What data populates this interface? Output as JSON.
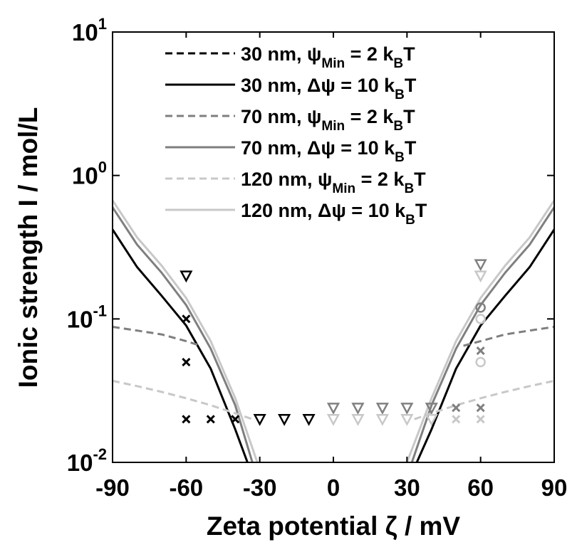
{
  "chart_data": {
    "type": "line",
    "xlabel": "Zeta potential ζ / mV",
    "ylabel": "Ionic strength I / mol/L",
    "xlim": [
      -90,
      90
    ],
    "ylim": [
      0.01,
      10
    ],
    "yscale": "log",
    "xticks": [
      -90,
      -60,
      -30,
      0,
      30,
      60,
      90
    ],
    "xtick_labels": [
      "-90",
      "-60",
      "-30",
      "0",
      "30",
      "60",
      "90"
    ],
    "yticks": [
      {
        "value": 0.01,
        "base": "10",
        "exp": "-2"
      },
      {
        "value": 0.1,
        "base": "10",
        "exp": "-1"
      },
      {
        "value": 1,
        "base": "10",
        "exp": "0"
      },
      {
        "value": 10,
        "base": "10",
        "exp": "1"
      }
    ],
    "grid": false,
    "legend_position": "top-right",
    "series": [
      {
        "name": "30 nm, ψMin = 2 kBT",
        "legend": {
          "main": "30 nm, ψ",
          "sub1": "Min",
          "mid": " = 2 k",
          "sub2": "B",
          "end": "T"
        },
        "color": "#000000",
        "dash": "dashed",
        "x": [
          -90,
          -80,
          -70,
          -60,
          -54
        ],
        "y": [
          null,
          null,
          null,
          null,
          null
        ]
      },
      {
        "name": "30 nm, Δψ = 10 kBT",
        "legend": {
          "main": "30 nm, Δψ = 10 k",
          "sub1": "",
          "mid": "",
          "sub2": "B",
          "end": "T"
        },
        "color": "#000000",
        "dash": "solid",
        "x": [
          -90,
          -80,
          -70,
          -60,
          -50,
          -40,
          -35
        ],
        "y": [
          0.42,
          0.23,
          0.145,
          0.09,
          0.045,
          0.017,
          0.01
        ]
      },
      {
        "name": "70 nm, ψMin = 2 kBT",
        "legend": {
          "main": "70 nm, ψ",
          "sub1": "Min",
          "mid": " = 2 k",
          "sub2": "B",
          "end": "T"
        },
        "color": "#7f7f7f",
        "dash": "dashed",
        "x": [
          -90,
          -80,
          -70,
          -60,
          -54
        ],
        "y": [
          0.088,
          0.083,
          0.078,
          0.07,
          0.065
        ]
      },
      {
        "name": "70 nm, Δψ = 10 kBT",
        "legend": {
          "main": "70 nm, Δψ = 10 k",
          "sub1": "",
          "mid": "",
          "sub2": "B",
          "end": "T"
        },
        "color": "#7f7f7f",
        "dash": "solid",
        "x": [
          -90,
          -80,
          -70,
          -60,
          -50,
          -40,
          -33
        ],
        "y": [
          0.6,
          0.33,
          0.21,
          0.125,
          0.062,
          0.025,
          0.01
        ]
      },
      {
        "name": "120 nm, ψMin = 2 kBT",
        "legend": {
          "main": "120 nm, ψ",
          "sub1": "Min",
          "mid": " = 2 k",
          "sub2": "B",
          "end": "T"
        },
        "color": "#c8c8c8",
        "dash": "dashed",
        "x": [
          -90,
          -80,
          -70,
          -60,
          -50,
          -40,
          -33
        ],
        "y": [
          0.037,
          0.034,
          0.031,
          0.028,
          0.025,
          0.022,
          0.02
        ]
      },
      {
        "name": "120 nm, Δψ = 10 kBT",
        "legend": {
          "main": "120 nm, Δψ = 10 k",
          "sub1": "",
          "mid": "",
          "sub2": "B",
          "end": "T"
        },
        "color": "#c8c8c8",
        "dash": "solid",
        "x": [
          -90,
          -80,
          -70,
          -60,
          -50,
          -40,
          -31
        ],
        "y": [
          0.67,
          0.37,
          0.235,
          0.14,
          0.07,
          0.028,
          0.01
        ]
      }
    ],
    "extra_curves": [
      {
        "color": "#000000",
        "dash": "solid",
        "x": [
          34,
          40,
          50,
          60,
          70,
          80,
          90
        ],
        "y": [
          0.01,
          0.017,
          0.045,
          0.09,
          0.145,
          0.23,
          0.42
        ]
      },
      {
        "color": "#7f7f7f",
        "dash": "solid",
        "x": [
          32,
          40,
          50,
          60,
          70,
          80,
          90
        ],
        "y": [
          0.01,
          0.025,
          0.062,
          0.125,
          0.21,
          0.33,
          0.6
        ]
      },
      {
        "color": "#c8c8c8",
        "dash": "solid",
        "x": [
          30,
          40,
          50,
          60,
          70,
          80,
          90
        ],
        "y": [
          0.01,
          0.028,
          0.07,
          0.14,
          0.235,
          0.37,
          0.67
        ]
      },
      {
        "color": "#7f7f7f",
        "dash": "dashed",
        "x": [
          53,
          60,
          70,
          80,
          90
        ],
        "y": [
          0.065,
          0.07,
          0.078,
          0.083,
          0.088
        ]
      },
      {
        "color": "#c8c8c8",
        "dash": "dashed",
        "x": [
          33,
          40,
          50,
          60,
          70,
          80,
          90
        ],
        "y": [
          0.02,
          0.022,
          0.025,
          0.028,
          0.031,
          0.034,
          0.037
        ]
      }
    ],
    "markers": [
      {
        "shape": "triangle-down",
        "color": "#000000",
        "points": [
          [
            -60,
            0.2
          ],
          [
            -30,
            0.02
          ],
          [
            -20,
            0.02
          ],
          [
            -10,
            0.02
          ]
        ]
      },
      {
        "shape": "x",
        "color": "#000000",
        "points": [
          [
            -60,
            0.1
          ],
          [
            -60,
            0.05
          ],
          [
            -60,
            0.02
          ],
          [
            -50,
            0.02
          ],
          [
            -40,
            0.02
          ]
        ]
      },
      {
        "shape": "triangle-down",
        "color": "#808080",
        "points": [
          [
            0,
            0.024
          ],
          [
            10,
            0.024
          ],
          [
            20,
            0.024
          ],
          [
            30,
            0.024
          ],
          [
            40,
            0.024
          ],
          [
            60,
            0.24
          ]
        ]
      },
      {
        "shape": "x",
        "color": "#808080",
        "points": [
          [
            50,
            0.024
          ],
          [
            60,
            0.024
          ],
          [
            60,
            0.06
          ]
        ]
      },
      {
        "shape": "triangle-down",
        "color": "#c8c8c8",
        "points": [
          [
            0,
            0.02
          ],
          [
            10,
            0.02
          ],
          [
            20,
            0.02
          ],
          [
            30,
            0.02
          ],
          [
            40,
            0.02
          ],
          [
            60,
            0.2
          ]
        ]
      },
      {
        "shape": "x",
        "color": "#c8c8c8",
        "points": [
          [
            50,
            0.02
          ],
          [
            60,
            0.02
          ]
        ]
      },
      {
        "shape": "circle",
        "color": "#808080",
        "points": [
          [
            60,
            0.12
          ]
        ]
      },
      {
        "shape": "circle",
        "color": "#c8c8c8",
        "points": [
          [
            60,
            0.1
          ],
          [
            60,
            0.05
          ]
        ]
      }
    ]
  }
}
